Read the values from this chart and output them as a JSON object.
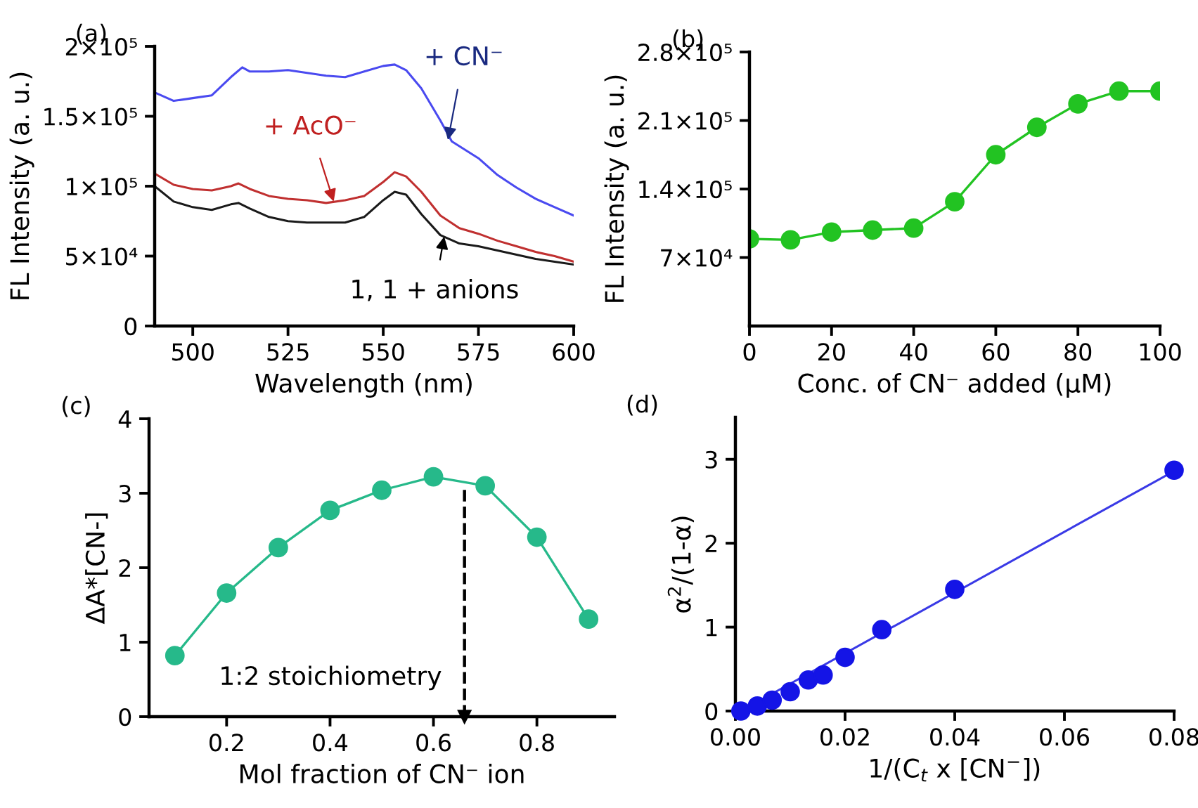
{
  "chart_data": [
    {
      "type": "line",
      "title": "(a)",
      "xlabel": "Wavelength (nm)",
      "ylabel": "FL Intensity (a. u.)",
      "marker": "none",
      "grid": false,
      "legend": false,
      "xlim": [
        490,
        600
      ],
      "xticks": [
        500,
        525,
        550,
        575,
        600
      ],
      "ylim": [
        0,
        200000
      ],
      "yticks": [
        0,
        {
          "value": 50000,
          "label": "5×10⁴"
        },
        {
          "value": 100000,
          "label": "1×10⁵"
        },
        {
          "value": 150000,
          "label": "1.5×10⁵"
        },
        {
          "value": 200000,
          "label": "2×10⁵"
        }
      ],
      "series": [
        {
          "color": "#4a4af0",
          "x": [
            490,
            495,
            500,
            505,
            510,
            513,
            515,
            520,
            525,
            530,
            535,
            540,
            545,
            550,
            553,
            556,
            560,
            565,
            568,
            575,
            580,
            585,
            590,
            595,
            600
          ],
          "values": [
            167000,
            161000,
            163000,
            165000,
            178000,
            185000,
            182000,
            182000,
            183000,
            181000,
            179000,
            178000,
            182000,
            186000,
            187000,
            183000,
            170000,
            147000,
            132000,
            120000,
            108000,
            99000,
            91000,
            85000,
            79000
          ]
        },
        {
          "color": "#c03030",
          "x": [
            490,
            495,
            500,
            505,
            510,
            512,
            515,
            520,
            525,
            530,
            535,
            540,
            545,
            550,
            553,
            556,
            560,
            565,
            570,
            575,
            580,
            585,
            590,
            595,
            600
          ],
          "values": [
            109000,
            101000,
            98000,
            97000,
            100000,
            102000,
            98000,
            93000,
            91000,
            90000,
            88000,
            90000,
            93000,
            103000,
            110000,
            107000,
            96000,
            79000,
            70000,
            66000,
            61000,
            57000,
            53000,
            50000,
            46000
          ]
        },
        {
          "color": "#1a1a1a",
          "x": [
            490,
            495,
            500,
            505,
            510,
            512,
            515,
            520,
            525,
            530,
            535,
            540,
            545,
            550,
            553,
            556,
            560,
            565,
            570,
            575,
            580,
            585,
            590,
            595,
            600
          ],
          "values": [
            100000,
            89000,
            85000,
            83000,
            87000,
            88000,
            84000,
            78000,
            75000,
            74000,
            74000,
            74000,
            78000,
            90000,
            96000,
            94000,
            80000,
            65000,
            59000,
            57000,
            54000,
            51000,
            48000,
            46000,
            44000
          ]
        }
      ],
      "annotations": [
        {
          "text": "+ CN⁻",
          "x": 567,
          "y": 133000
        },
        {
          "text": "+ AcO⁻",
          "x": 537,
          "y": 89000
        },
        {
          "text": "1, 1 + anions",
          "x": 566,
          "y": 64000
        }
      ]
    },
    {
      "type": "line",
      "title": "(b)",
      "xlabel": "Conc. of CN⁻ added (μM)",
      "ylabel": "FL Intensity (a. u.)",
      "marker": "circle",
      "grid": false,
      "legend": false,
      "xlim": [
        0,
        100
      ],
      "xticks": [
        0,
        20,
        40,
        60,
        80,
        100
      ],
      "ylim": [
        0,
        280000
      ],
      "yticks": [
        {
          "value": 70000,
          "label": "7×10⁴"
        },
        {
          "value": 140000,
          "label": "1.4×10⁵"
        },
        {
          "value": 210000,
          "label": "2.1×10⁵"
        },
        {
          "value": 280000,
          "label": "2.8×10⁵"
        }
      ],
      "series": [
        {
          "color": "#22c322",
          "x": [
            0,
            10,
            20,
            30,
            40,
            50,
            60,
            70,
            80,
            90,
            100
          ],
          "values": [
            89000,
            88000,
            96000,
            98000,
            100000,
            127000,
            175000,
            203000,
            227000,
            240000,
            240000
          ]
        }
      ]
    },
    {
      "type": "line",
      "title": "(c)",
      "xlabel": "Mol fraction of CN⁻ ion",
      "ylabel": "ΔA*[CN-]",
      "marker": "circle",
      "grid": false,
      "legend": false,
      "xlim": [
        0.05,
        0.95
      ],
      "xticks": [
        0.2,
        0.4,
        0.6,
        0.8
      ],
      "ylim": [
        0,
        4
      ],
      "yticks": [
        0,
        1,
        2,
        3,
        4
      ],
      "series": [
        {
          "color": "#26b98a",
          "x": [
            0.1,
            0.2,
            0.3,
            0.4,
            0.5,
            0.6,
            0.7,
            0.8,
            0.9
          ],
          "values": [
            0.82,
            1.66,
            2.27,
            2.77,
            3.04,
            3.22,
            3.1,
            2.41,
            1.31
          ]
        }
      ],
      "ref_lines": [
        {
          "axis": "x",
          "value": 0.66,
          "color": "#000000",
          "line_style": "dashed"
        }
      ],
      "annotations": [
        "1:2 stoichiometry"
      ]
    },
    {
      "type": "scatter",
      "title": "(d)",
      "xlabel": "1/(C$_{t}$ x [CN$^{−}$])",
      "ylabel": "α$^{2}$/(1-α)",
      "marker": "circle",
      "grid": false,
      "legend": false,
      "xlim": [
        0,
        0.08
      ],
      "xticks": [
        {
          "value": 0,
          "label": "0.00"
        },
        {
          "value": 0.02,
          "label": "0.02"
        },
        {
          "value": 0.04,
          "label": "0.04"
        },
        {
          "value": 0.06,
          "label": "0.06"
        },
        {
          "value": 0.08,
          "label": "0.08"
        }
      ],
      "ylim": [
        0,
        3.5
      ],
      "yticks": [
        0,
        1,
        2,
        3
      ],
      "series": [
        {
          "color": "#1414e6",
          "x": [
            0.001,
            0.004,
            0.0067,
            0.01,
            0.0133,
            0.016,
            0.02,
            0.0267,
            0.04,
            0.08
          ],
          "values": [
            0.0,
            0.06,
            0.13,
            0.23,
            0.37,
            0.43,
            0.64,
            0.97,
            1.45,
            2.87
          ]
        },
        {
          "type": "line",
          "marker": "none",
          "color": "#3a3ae6",
          "x": [
            0.001,
            0.08
          ],
          "values": [
            0.0,
            2.86
          ]
        }
      ]
    }
  ]
}
